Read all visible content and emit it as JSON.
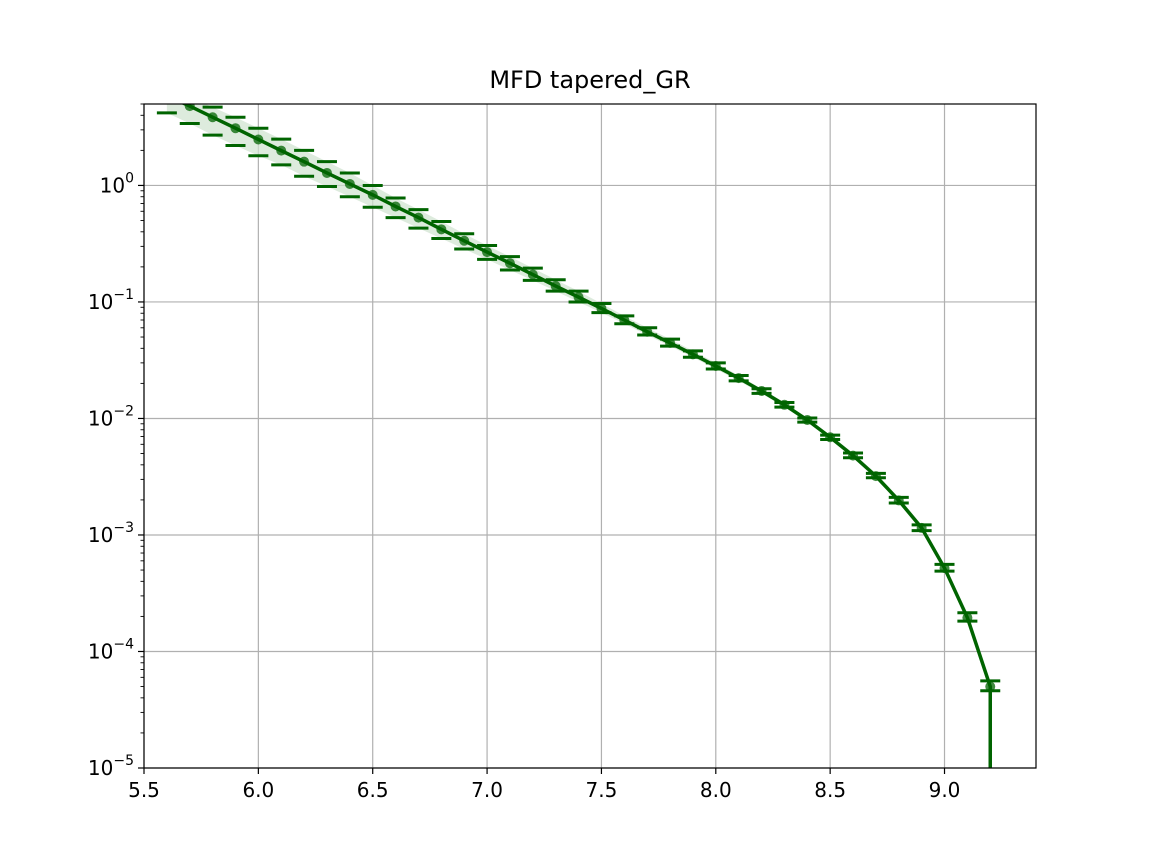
{
  "chart_data": {
    "type": "line",
    "title": "MFD tapered_GR",
    "xlabel": "",
    "ylabel": "",
    "xlim": [
      5.5,
      9.4
    ],
    "ylim": [
      1e-05,
      5
    ],
    "yscale": "log",
    "grid": true,
    "colors": {
      "line": "#006400",
      "bounds": "#006400",
      "band": "#cfe3cf",
      "grid": "#b0b0b0"
    },
    "x_ticks": [
      "5.5",
      "6.0",
      "6.5",
      "7.0",
      "7.5",
      "8.0",
      "8.5",
      "9.0"
    ],
    "y_ticks": [
      {
        "value": 1,
        "base": "10",
        "exp": "0"
      },
      {
        "value": 0.1,
        "base": "10",
        "exp": "−1"
      },
      {
        "value": 0.01,
        "base": "10",
        "exp": "−2"
      },
      {
        "value": 0.001,
        "base": "10",
        "exp": "−3"
      },
      {
        "value": 0.0001,
        "base": "10",
        "exp": "−4"
      },
      {
        "value": 1e-05,
        "base": "10",
        "exp": "−5"
      }
    ],
    "x": [
      5.6,
      5.7,
      5.8,
      5.9,
      6.0,
      6.1,
      6.2,
      6.3,
      6.4,
      6.5,
      6.6,
      6.7,
      6.8,
      6.9,
      7.0,
      7.1,
      7.2,
      7.3,
      7.4,
      7.5,
      7.6,
      7.7,
      7.8,
      7.9,
      8.0,
      8.1,
      8.2,
      8.3,
      8.4,
      8.5,
      8.6,
      8.7,
      8.8,
      8.9,
      9.0,
      9.1,
      9.2
    ],
    "y": [
      5.9,
      4.8,
      3.85,
      3.1,
      2.48,
      1.99,
      1.6,
      1.28,
      1.03,
      0.83,
      0.66,
      0.53,
      0.42,
      0.335,
      0.268,
      0.215,
      0.172,
      0.137,
      0.11,
      0.088,
      0.07,
      0.0555,
      0.0445,
      0.0355,
      0.0282,
      0.0222,
      0.0172,
      0.0131,
      0.0097,
      0.0069,
      0.0048,
      0.0032,
      0.00198,
      0.00115,
      0.00052,
      0.000195,
      5e-05
    ],
    "y_upper": [
      7.2,
      5.8,
      4.7,
      3.85,
      3.1,
      2.5,
      2.0,
      1.6,
      1.28,
      1.0,
      0.78,
      0.62,
      0.49,
      0.385,
      0.305,
      0.245,
      0.195,
      0.155,
      0.124,
      0.097,
      0.076,
      0.06,
      0.048,
      0.038,
      0.03,
      0.0234,
      0.018,
      0.0137,
      0.0101,
      0.0072,
      0.00505,
      0.00338,
      0.0021,
      0.00122,
      0.00056,
      0.000215,
      5.6e-05
    ],
    "y_lower": [
      4.2,
      3.4,
      2.7,
      2.2,
      1.8,
      1.5,
      1.2,
      0.98,
      0.8,
      0.65,
      0.53,
      0.43,
      0.35,
      0.285,
      0.232,
      0.188,
      0.153,
      0.124,
      0.1,
      0.081,
      0.065,
      0.052,
      0.0418,
      0.0335,
      0.0266,
      0.021,
      0.0164,
      0.0125,
      0.0093,
      0.0066,
      0.0046,
      0.0031,
      0.00188,
      0.00109,
      0.00049,
      0.000182,
      4.6e-05
    ]
  }
}
